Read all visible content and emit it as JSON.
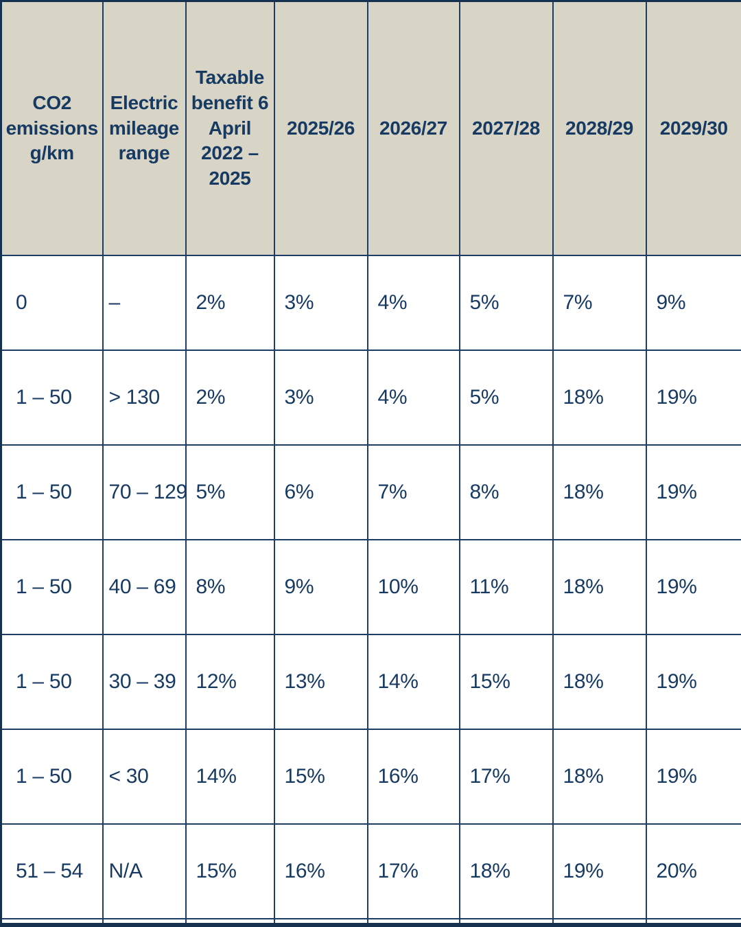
{
  "chart_data": {
    "type": "table",
    "columns": [
      "CO2 emissions g/km",
      "Electric mileage range",
      "Taxable benefit 6 April 2022 – 2025",
      "2025/26",
      "2026/27",
      "2027/28",
      "2028/29",
      "2029/30"
    ],
    "rows": [
      [
        "0",
        "–",
        "2%",
        "3%",
        "4%",
        "5%",
        "7%",
        "9%"
      ],
      [
        "1 – 50",
        "> 130",
        "2%",
        "3%",
        "4%",
        "5%",
        "18%",
        "19%"
      ],
      [
        "1 – 50",
        "70 – 129",
        "5%",
        "6%",
        "7%",
        "8%",
        "18%",
        "19%"
      ],
      [
        "1 – 50",
        "40 – 69",
        "8%",
        "9%",
        "10%",
        "11%",
        "18%",
        "19%"
      ],
      [
        "1 – 50",
        "30 – 39",
        "12%",
        "13%",
        "14%",
        "15%",
        "18%",
        "19%"
      ],
      [
        "1 – 50",
        "< 30",
        "14%",
        "15%",
        "16%",
        "17%",
        "18%",
        "19%"
      ],
      [
        "51 – 54",
        "N/A",
        "15%",
        "16%",
        "17%",
        "18%",
        "19%",
        "20%"
      ]
    ],
    "layout": {
      "legend": "none",
      "grid": "on"
    }
  },
  "colors": {
    "header_background": "#d8d5c6",
    "text": "#173a63",
    "grid_border": "#1e3d66",
    "outer_border": "#14314f",
    "row_background": "#ffffff"
  }
}
